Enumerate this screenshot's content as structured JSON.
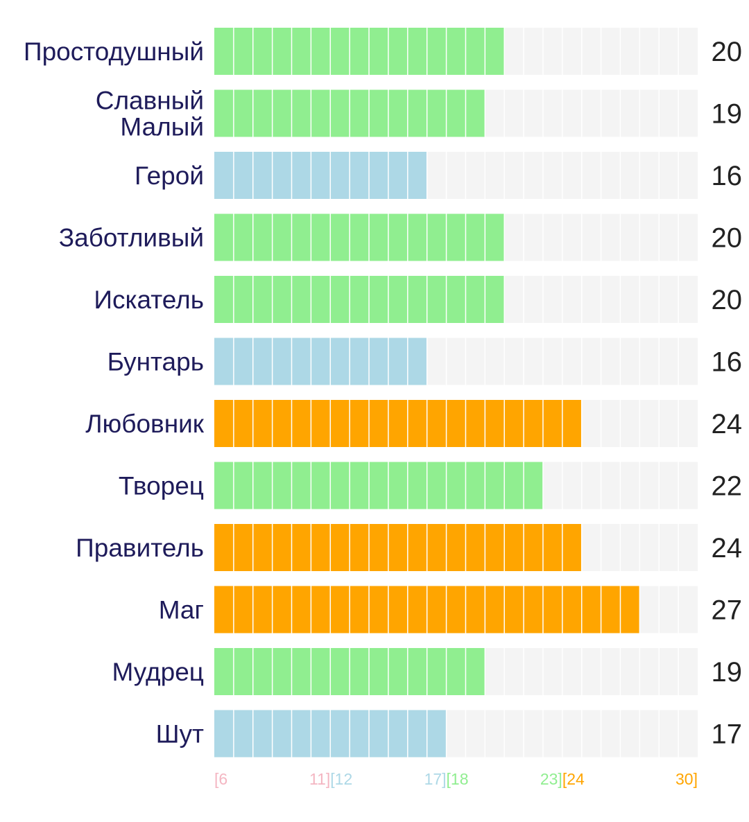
{
  "chart_data": {
    "type": "bar",
    "orientation": "horizontal",
    "xlim": [
      6,
      30
    ],
    "grid": true,
    "categories": [
      [
        "Простодушный"
      ],
      [
        "Славный",
        "Малый"
      ],
      [
        "Герой"
      ],
      [
        "Заботливый"
      ],
      [
        "Искатель"
      ],
      [
        "Бунтарь"
      ],
      [
        "Любовник"
      ],
      [
        "Творец"
      ],
      [
        "Правитель"
      ],
      [
        "Маг"
      ],
      [
        "Мудрец"
      ],
      [
        "Шут"
      ]
    ],
    "values": [
      20,
      19,
      16,
      20,
      20,
      16,
      24,
      22,
      24,
      27,
      19,
      17
    ],
    "ranges": [
      {
        "start": 6,
        "end": 11,
        "start_label": "[6",
        "end_label": "11]",
        "color": "#f4b6c2"
      },
      {
        "start": 12,
        "end": 17,
        "start_label": "[12",
        "end_label": "17]",
        "color": "#add8e6"
      },
      {
        "start": 18,
        "end": 23,
        "start_label": "[18",
        "end_label": "23]",
        "color": "#90ee90"
      },
      {
        "start": 24,
        "end": 30,
        "start_label": "[24",
        "end_label": "30]",
        "color": "#ffa500"
      }
    ],
    "colors": {
      "track": "#f4f4f4",
      "segment_divider": "#ffffff"
    }
  }
}
